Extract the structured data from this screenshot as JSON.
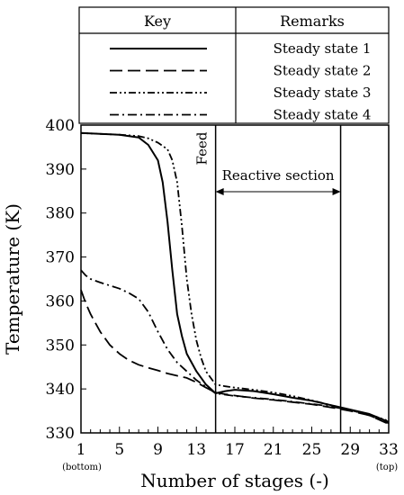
{
  "chart_data": {
    "type": "line",
    "xlabel": "Number of stages (-)",
    "ylabel": "Temperature (K)",
    "xlim": [
      1,
      33
    ],
    "ylim": [
      330,
      400
    ],
    "x_ticks": [
      1,
      5,
      9,
      13,
      17,
      21,
      25,
      29,
      33
    ],
    "y_ticks": [
      330,
      340,
      350,
      360,
      370,
      380,
      390,
      400
    ],
    "x_tick_notes": {
      "bottom": "(bottom)",
      "top": "(top)"
    },
    "legend": {
      "header_key": "Key",
      "header_remarks": "Remarks"
    },
    "annotations": {
      "feed": "Feed",
      "reactive_section": "Reactive section",
      "feed_stage": 15,
      "reactive_end_stage": 28
    },
    "grid": false,
    "series": [
      {
        "name": "Steady state 1",
        "dash": "solid",
        "x": [
          1,
          3,
          5,
          7,
          8,
          9,
          9.5,
          10,
          10.5,
          11,
          11.5,
          12,
          13,
          14,
          15,
          16,
          17,
          19,
          21,
          23,
          25,
          27,
          29,
          31,
          33
        ],
        "y": [
          398.2,
          398.0,
          397.8,
          397.2,
          395.5,
          392.0,
          387.0,
          378.0,
          367.0,
          357.0,
          352.0,
          348.0,
          344.0,
          341.0,
          339.0,
          339.5,
          339.8,
          339.5,
          338.8,
          338.0,
          337.3,
          336.3,
          335.3,
          334.3,
          332.5
        ]
      },
      {
        "name": "Steady state 2",
        "dash": "dashed",
        "x": [
          1,
          1.5,
          2,
          3,
          4,
          5,
          6,
          7,
          8,
          9,
          10,
          11,
          12,
          13,
          14,
          15,
          16,
          17,
          19,
          21,
          23,
          25,
          27,
          29,
          31,
          33
        ],
        "y": [
          362.5,
          359.5,
          357.0,
          353.0,
          350.0,
          348.0,
          346.5,
          345.5,
          344.8,
          344.2,
          343.5,
          343.0,
          342.5,
          341.5,
          340.3,
          339.2,
          338.8,
          338.5,
          337.9,
          337.5,
          337.0,
          336.5,
          335.8,
          335.0,
          334.0,
          332.0
        ]
      },
      {
        "name": "Steady state 3",
        "dash": "dashdotdot",
        "x": [
          1,
          3,
          5,
          7,
          8,
          9,
          10,
          10.5,
          11,
          11.5,
          12,
          12.5,
          13,
          13.5,
          14,
          15,
          16,
          17,
          19,
          21,
          23,
          25,
          27,
          29,
          31,
          33
        ],
        "y": [
          398.2,
          398.0,
          397.8,
          397.5,
          397.0,
          396.0,
          394.5,
          392.0,
          387.0,
          377.0,
          365.0,
          357.0,
          351.0,
          347.0,
          344.0,
          341.0,
          340.6,
          340.3,
          339.8,
          339.2,
          338.4,
          337.4,
          336.3,
          335.2,
          334.2,
          332.7
        ]
      },
      {
        "name": "Steady state 4",
        "dash": "dashdot",
        "x": [
          1,
          1.5,
          2,
          3,
          4,
          5,
          6,
          7,
          8,
          9,
          10,
          11,
          12,
          13,
          14,
          15,
          16,
          17,
          19,
          21,
          23,
          25,
          27,
          29,
          31,
          33
        ],
        "y": [
          367.0,
          365.8,
          365.0,
          364.2,
          363.5,
          362.8,
          361.8,
          360.5,
          357.5,
          353.0,
          349.0,
          346.0,
          344.0,
          342.0,
          340.5,
          339.0,
          338.7,
          338.4,
          338.0,
          337.6,
          337.1,
          336.6,
          336.0,
          335.2,
          334.0,
          332.2
        ]
      }
    ]
  }
}
